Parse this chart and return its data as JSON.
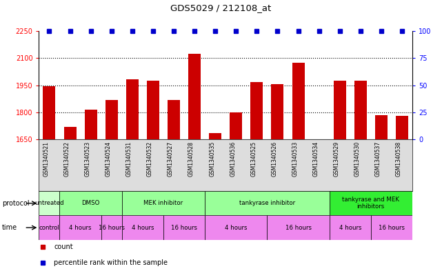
{
  "title": "GDS5029 / 212108_at",
  "samples": [
    "GSM1340521",
    "GSM1340522",
    "GSM1340523",
    "GSM1340524",
    "GSM1340531",
    "GSM1340532",
    "GSM1340527",
    "GSM1340528",
    "GSM1340535",
    "GSM1340536",
    "GSM1340525",
    "GSM1340526",
    "GSM1340533",
    "GSM1340534",
    "GSM1340529",
    "GSM1340530",
    "GSM1340537",
    "GSM1340538"
  ],
  "counts": [
    1945,
    1720,
    1815,
    1870,
    1985,
    1975,
    1870,
    2125,
    1685,
    1800,
    1970,
    1955,
    2075,
    1650,
    1975,
    1975,
    1785,
    1780
  ],
  "percentile": [
    100,
    100,
    100,
    100,
    100,
    100,
    100,
    100,
    100,
    100,
    100,
    100,
    100,
    100,
    100,
    100,
    100,
    100
  ],
  "ylim_left": [
    1650,
    2250
  ],
  "ylim_right": [
    0,
    100
  ],
  "yticks_left": [
    1650,
    1800,
    1950,
    2100,
    2250
  ],
  "yticks_right": [
    0,
    25,
    50,
    75,
    100
  ],
  "bar_color": "#cc0000",
  "dot_color": "#0000cc",
  "protocol_groups": [
    {
      "label": "untreated",
      "start": 0,
      "end": 1,
      "color": "#ccffcc"
    },
    {
      "label": "DMSO",
      "start": 1,
      "end": 4,
      "color": "#99ff99"
    },
    {
      "label": "MEK inhibitor",
      "start": 4,
      "end": 8,
      "color": "#99ff99"
    },
    {
      "label": "tankyrase inhibitor",
      "start": 8,
      "end": 14,
      "color": "#99ff99"
    },
    {
      "label": "tankyrase and MEK\ninhibitors",
      "start": 14,
      "end": 18,
      "color": "#33ee33"
    }
  ],
  "time_groups": [
    {
      "label": "control",
      "start": 0,
      "end": 1,
      "color": "#ee88ee"
    },
    {
      "label": "4 hours",
      "start": 1,
      "end": 3,
      "color": "#ee88ee"
    },
    {
      "label": "16 hours",
      "start": 3,
      "end": 4,
      "color": "#ee88ee"
    },
    {
      "label": "4 hours",
      "start": 4,
      "end": 6,
      "color": "#ee88ee"
    },
    {
      "label": "16 hours",
      "start": 6,
      "end": 8,
      "color": "#ee88ee"
    },
    {
      "label": "4 hours",
      "start": 8,
      "end": 11,
      "color": "#ee88ee"
    },
    {
      "label": "16 hours",
      "start": 11,
      "end": 14,
      "color": "#ee88ee"
    },
    {
      "label": "4 hours",
      "start": 14,
      "end": 16,
      "color": "#ee88ee"
    },
    {
      "label": "16 hours",
      "start": 16,
      "end": 18,
      "color": "#ee88ee"
    }
  ],
  "legend_items": [
    {
      "label": "count",
      "color": "#cc0000"
    },
    {
      "label": "percentile rank within the sample",
      "color": "#0000cc"
    }
  ]
}
